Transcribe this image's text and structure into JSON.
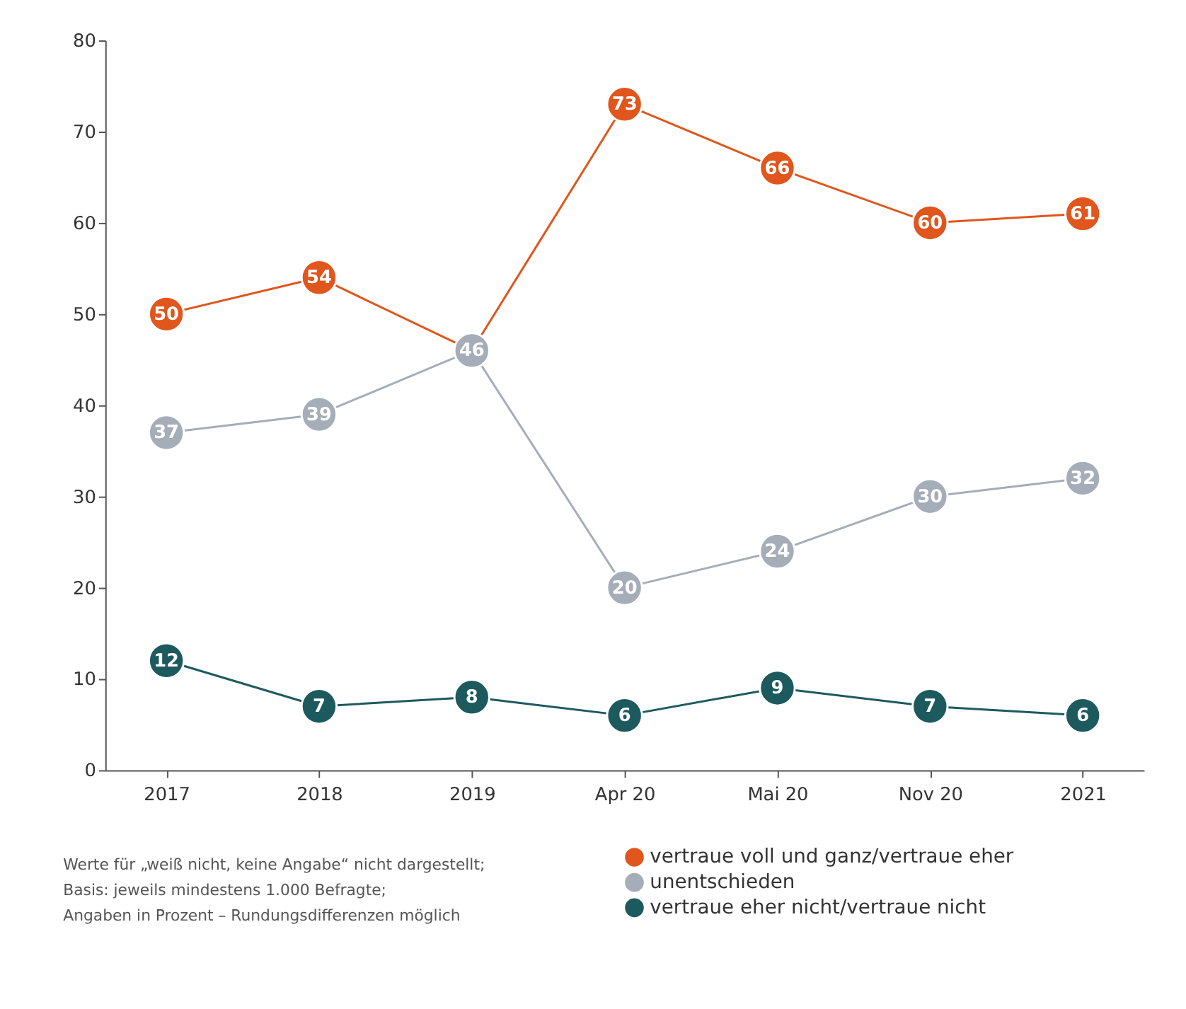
{
  "chart_data": {
    "type": "line",
    "categories": [
      "2017",
      "2018",
      "2019",
      "Apr 20",
      "Mai 20",
      "Nov 20",
      "2021"
    ],
    "series": [
      {
        "name": "vertraue voll und ganz/vertraue eher",
        "color": "#e0561c",
        "values": [
          50,
          54,
          46,
          73,
          66,
          60,
          61
        ],
        "value_labels": [
          "50",
          "54",
          null,
          "73",
          "66",
          "60",
          "61"
        ]
      },
      {
        "name": "unentschieden",
        "color": "#a5adb8",
        "values": [
          37,
          39,
          46,
          20,
          24,
          30,
          32
        ],
        "value_labels": [
          "37",
          "39",
          "46",
          "20",
          "24",
          "30",
          "32"
        ]
      },
      {
        "name": "vertraue eher nicht/vertraue nicht",
        "color": "#1d5a5e",
        "values": [
          12,
          7,
          8,
          6,
          9,
          7,
          6
        ],
        "value_labels": [
          "12",
          "7",
          "8",
          "6",
          "9",
          "7",
          "6"
        ]
      }
    ],
    "ylim": [
      0,
      80
    ],
    "yticks": [
      0,
      10,
      20,
      30,
      40,
      50,
      60,
      70,
      80
    ],
    "grid": false,
    "marker": "circle",
    "line_style": "solid",
    "legend": "bottom right",
    "annotations": [
      "Werte für „weiß nicht, keine Angabe“ nicht dargestellt;",
      "Basis: jeweils mindestens 1.000 Befragte;",
      "Angaben in Prozent – Rundungsdifferenzen möglich"
    ]
  }
}
